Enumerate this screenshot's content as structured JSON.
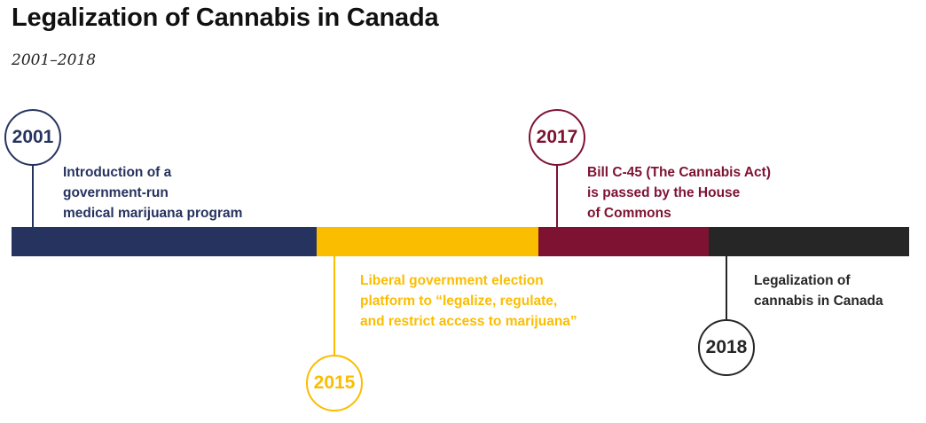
{
  "title": "Legalization of Cannabis in Canada",
  "subtitle": "2001–2018",
  "colors": {
    "navy": "#27335f",
    "gold": "#fbbd00",
    "maroon": "#7e1233",
    "black": "#262626"
  },
  "events": [
    {
      "year": "2001",
      "lines": [
        "Introduction of a",
        "government-run",
        "medical marijuana program"
      ]
    },
    {
      "year": "2015",
      "lines": [
        "Liberal government election",
        "platform to “legalize, regulate,",
        "and restrict access to marijuana”"
      ]
    },
    {
      "year": "2017",
      "lines": [
        "Bill C-45 (The Cannabis Act)",
        "is passed by the House",
        "of Commons"
      ]
    },
    {
      "year": "2018",
      "lines": [
        "Legalization of",
        "cannabis in Canada"
      ]
    }
  ]
}
